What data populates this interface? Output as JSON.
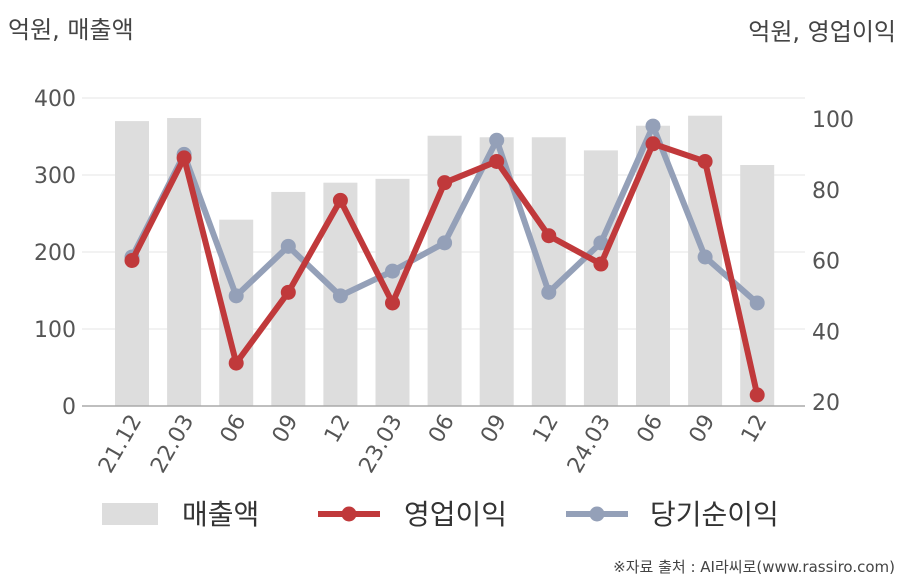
{
  "chart_data": {
    "type": "bar+line",
    "left_unit_label": "억원, 매출액",
    "right_unit_label": "억원, 영업이익",
    "categories": [
      "21.12",
      "22.03",
      "06",
      "09",
      "12",
      "23.03",
      "06",
      "09",
      "12",
      "24.03",
      "06",
      "09",
      "12"
    ],
    "left_axis": {
      "ylim": [
        0,
        400
      ],
      "ticks": [
        "0",
        "100",
        "200",
        "300",
        "400"
      ]
    },
    "right_axis": {
      "ylim": [
        20,
        100
      ],
      "ticks": [
        "20",
        "40",
        "60",
        "80",
        "100"
      ]
    },
    "series": [
      {
        "name": "매출액",
        "type": "bar",
        "axis": "left",
        "color": "#dddddd",
        "values": [
          370,
          374,
          242,
          278,
          290,
          295,
          351,
          349,
          349,
          332,
          364,
          377,
          313
        ]
      },
      {
        "name": "영업이익",
        "type": "line",
        "axis": "right",
        "color": "#c0393b",
        "values": [
          60,
          89,
          31,
          51,
          77,
          48,
          82,
          88,
          67,
          59,
          93,
          88,
          22
        ]
      },
      {
        "name": "당기순이익",
        "type": "line",
        "axis": "right",
        "color": "#94a0b8",
        "values": [
          61,
          90,
          50,
          64,
          50,
          57,
          65,
          94,
          51,
          65,
          98,
          61,
          48
        ]
      }
    ],
    "grid": true,
    "legend_position": "bottom"
  },
  "source_note": "※자료 출처 : AI라씨로(www.rassiro.com)"
}
